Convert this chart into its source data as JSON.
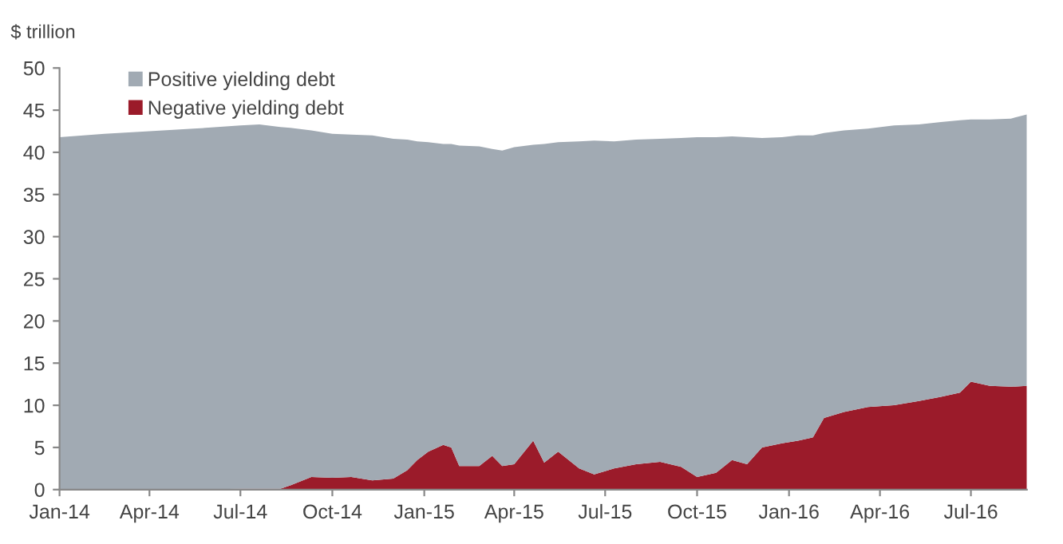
{
  "chart_data": {
    "type": "area",
    "stacked": true,
    "ylabel": "$ trillion",
    "x": [
      "2014-01-01",
      "2014-02-15",
      "2014-04-01",
      "2014-05-15",
      "2014-07-01",
      "2014-07-20",
      "2014-08-10",
      "2014-08-20",
      "2014-09-10",
      "2014-10-01",
      "2014-10-20",
      "2014-11-10",
      "2014-12-01",
      "2014-12-15",
      "2014-12-25",
      "2015-01-05",
      "2015-01-20",
      "2015-01-28",
      "2015-02-05",
      "2015-02-25",
      "2015-03-10",
      "2015-03-20",
      "2015-04-01",
      "2015-04-20",
      "2015-05-01",
      "2015-05-15",
      "2015-06-05",
      "2015-06-20",
      "2015-07-10",
      "2015-08-01",
      "2015-08-25",
      "2015-09-15",
      "2015-10-01",
      "2015-10-20",
      "2015-11-05",
      "2015-11-20",
      "2015-12-05",
      "2015-12-25",
      "2016-01-10",
      "2016-01-25",
      "2016-02-05",
      "2016-02-25",
      "2016-03-20",
      "2016-04-15",
      "2016-05-10",
      "2016-06-01",
      "2016-06-20",
      "2016-07-01",
      "2016-07-20",
      "2016-08-10",
      "2016-08-26"
    ],
    "series": [
      {
        "name": "Negative yielding debt",
        "color": "#9b1b2a",
        "values": [
          0,
          0,
          0,
          0,
          0.1,
          0.1,
          0.1,
          0.5,
          1.5,
          1.4,
          1.5,
          1.1,
          1.3,
          2.3,
          3.5,
          4.5,
          5.3,
          5.0,
          2.8,
          2.8,
          4.0,
          2.8,
          3.0,
          5.8,
          3.2,
          4.5,
          2.5,
          1.8,
          2.5,
          3.0,
          3.3,
          2.7,
          1.5,
          2.0,
          3.5,
          3.0,
          5.0,
          5.5,
          5.8,
          6.2,
          8.5,
          9.2,
          9.8,
          10.0,
          10.5,
          11.0,
          11.5,
          12.8,
          12.3,
          12.2,
          12.3
        ]
      },
      {
        "name": "Positive yielding debt",
        "color": "#a1aab3",
        "values": [
          41.8,
          42.2,
          42.5,
          42.8,
          43.1,
          43.2,
          42.9,
          42.4,
          41.1,
          40.8,
          40.6,
          40.9,
          40.3,
          39.2,
          37.8,
          36.7,
          35.7,
          36.0,
          38.0,
          37.9,
          36.4,
          37.4,
          37.6,
          35.1,
          37.8,
          36.7,
          38.8,
          39.6,
          38.8,
          38.5,
          38.3,
          39.0,
          40.3,
          39.8,
          38.4,
          38.8,
          36.7,
          36.3,
          36.2,
          35.8,
          33.8,
          33.4,
          33.0,
          33.2,
          32.8,
          32.6,
          32.3,
          31.1,
          31.6,
          31.8,
          32.2
        ]
      }
    ],
    "xlim": [
      "2014-01-01",
      "2016-08-26"
    ],
    "xticks": [
      {
        "value": "2014-01-01",
        "label": "Jan-14"
      },
      {
        "value": "2014-04-01",
        "label": "Apr-14"
      },
      {
        "value": "2014-07-01",
        "label": "Jul-14"
      },
      {
        "value": "2014-10-01",
        "label": "Oct-14"
      },
      {
        "value": "2015-01-01",
        "label": "Jan-15"
      },
      {
        "value": "2015-04-01",
        "label": "Apr-15"
      },
      {
        "value": "2015-07-01",
        "label": "Jul-15"
      },
      {
        "value": "2015-10-01",
        "label": "Oct-15"
      },
      {
        "value": "2016-01-01",
        "label": "Jan-16"
      },
      {
        "value": "2016-04-01",
        "label": "Apr-16"
      },
      {
        "value": "2016-07-01",
        "label": "Jul-16"
      }
    ],
    "ylim": [
      0,
      50
    ],
    "yticks": [
      0,
      5,
      10,
      15,
      20,
      25,
      30,
      35,
      40,
      45,
      50
    ],
    "grid": false,
    "legend": "top left"
  }
}
